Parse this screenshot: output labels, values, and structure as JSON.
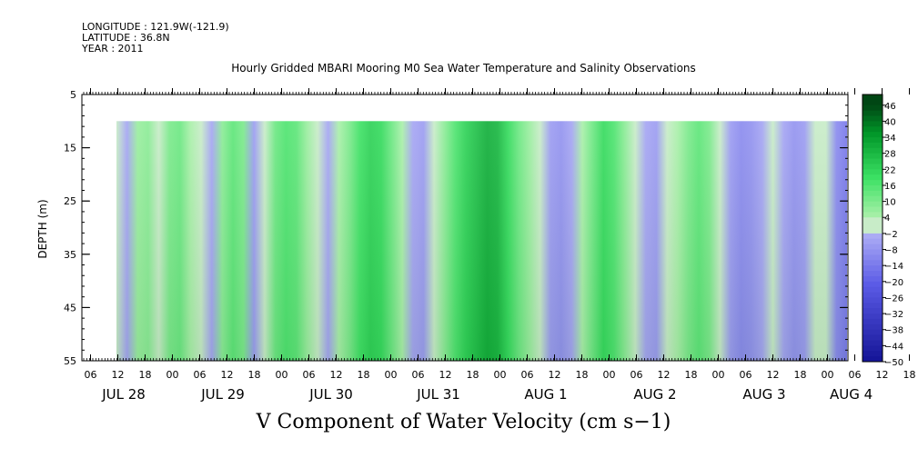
{
  "meta": {
    "longitude": "LONGITUDE : 121.9W(-121.9)",
    "latitude": "LATITUDE : 36.8N",
    "year": "YEAR : 2011"
  },
  "chart_data": {
    "type": "heatmap",
    "title": "Hourly Gridded MBARI Mooring M0 Sea Water Temperature and Salinity Observations",
    "xlabel": "V Component of Water Velocity (cm s−1)",
    "ylabel": "DEPTH (m)",
    "y_ticks": [
      5,
      15,
      25,
      35,
      45,
      55
    ],
    "ylim": [
      5,
      55
    ],
    "y_inverted": true,
    "data_depth_range": [
      10,
      55
    ],
    "x_start_hour": "JUL 28 00",
    "x_hour_labels": [
      "06",
      "12",
      "18",
      "00",
      "06",
      "12",
      "18",
      "00",
      "06",
      "12",
      "18",
      "00",
      "06",
      "12",
      "18",
      "00",
      "06",
      "12",
      "18",
      "00",
      "06",
      "12",
      "18",
      "00",
      "06",
      "12",
      "18",
      "00",
      "06",
      "12",
      "18",
      "00"
    ],
    "x_day_labels": [
      "JUL 28",
      "JUL 29",
      "JUL 30",
      "JUL 31",
      "AUG  1",
      "AUG  2",
      "AUG  3",
      "AUG  4"
    ],
    "colorbar": {
      "ticks": [
        "46",
        "40",
        "34",
        "28",
        "22",
        "16",
        "10",
        "4",
        "−2",
        "−8",
        "−14",
        "−20",
        "−26",
        "−32",
        "−38",
        "−44",
        "−50"
      ],
      "range": [
        -50,
        50
      ]
    },
    "velocity_profile": [
      -2,
      -4,
      6,
      8,
      -2,
      10,
      12,
      4,
      -2,
      -4,
      8,
      14,
      10,
      -6,
      -2,
      12,
      16,
      14,
      6,
      -2,
      -4,
      4,
      10,
      18,
      22,
      20,
      12,
      4,
      -4,
      -6,
      -2,
      8,
      16,
      22,
      26,
      30,
      28,
      20,
      12,
      6,
      -2,
      -6,
      -8,
      -4,
      4,
      12,
      20,
      16,
      8,
      2,
      -4,
      -6,
      -2,
      4,
      10,
      14,
      10,
      2,
      -6,
      -10,
      -8,
      -4,
      2,
      -4,
      -8,
      -6,
      2,
      -2,
      -10,
      -14
    ],
    "legend": "none",
    "grid": false
  }
}
